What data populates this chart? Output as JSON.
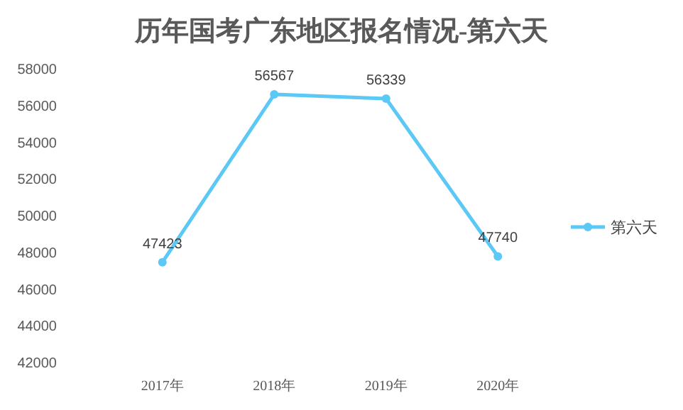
{
  "chart_data": {
    "type": "line",
    "title": "历年国考广东地区报名情况-第六天",
    "categories": [
      "2017年",
      "2018年",
      "2019年",
      "2020年"
    ],
    "series": [
      {
        "name": "第六天",
        "color": "#5bc8f5",
        "values": [
          47423,
          56567,
          56339,
          47740
        ]
      }
    ],
    "ylim": [
      42000,
      58000
    ],
    "yticks": [
      42000,
      44000,
      46000,
      48000,
      50000,
      52000,
      54000,
      56000,
      58000
    ],
    "marker": "circle",
    "line_style": "solid",
    "data_labels": true,
    "legend": "right"
  }
}
